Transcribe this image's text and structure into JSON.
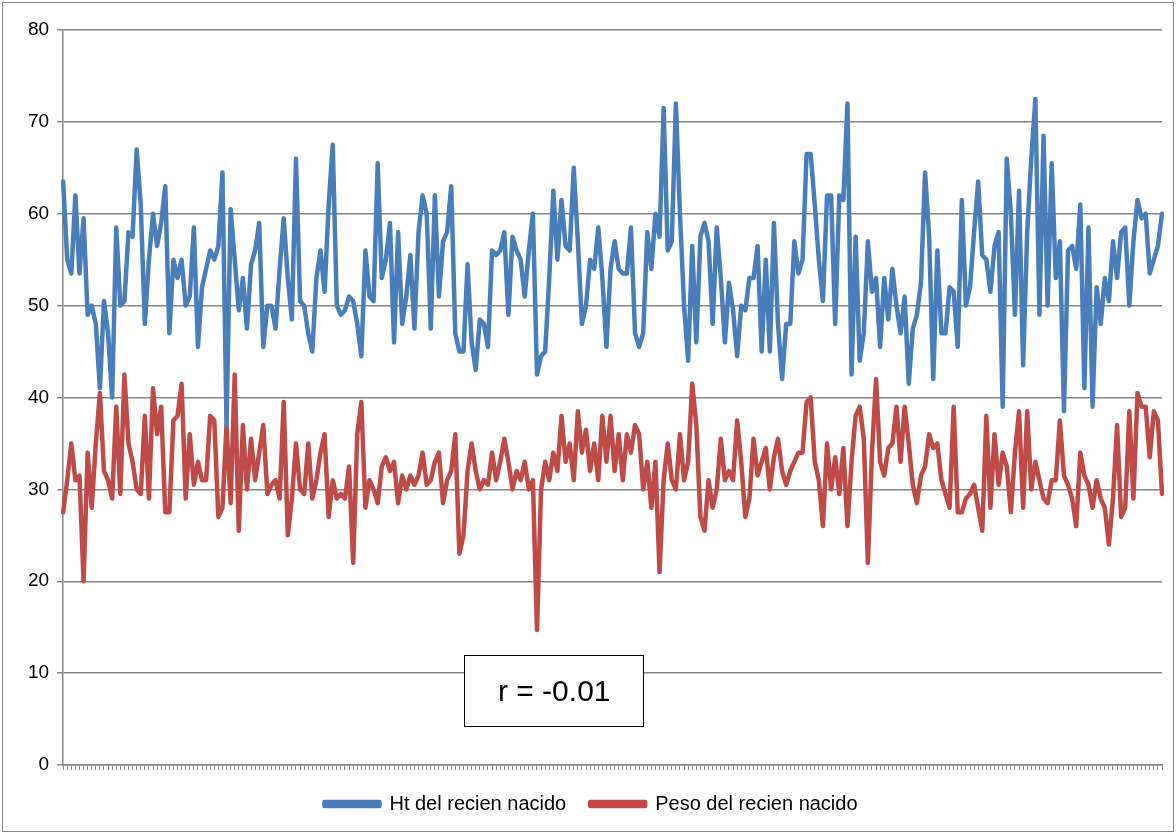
{
  "chart_data": {
    "type": "line",
    "categories": [
      null,
      null,
      null,
      null,
      null,
      null,
      null,
      null,
      null,
      null,
      null,
      null,
      null,
      null,
      null,
      null,
      null,
      null,
      null,
      null,
      null,
      null,
      null,
      null,
      null,
      null,
      null,
      null,
      null,
      null,
      null,
      null,
      null,
      null,
      null,
      null,
      null,
      null,
      null,
      null,
      null,
      null,
      null,
      null,
      null,
      null,
      null,
      null,
      null,
      null,
      null,
      null,
      null,
      null,
      null,
      null,
      null,
      null,
      null,
      null,
      null,
      null,
      null,
      null,
      null,
      null,
      null,
      null,
      null,
      null,
      null,
      null,
      null,
      null,
      null,
      null,
      null,
      null,
      null,
      null,
      null,
      null,
      null,
      null,
      null,
      null,
      null,
      null,
      null,
      null,
      null,
      null,
      null,
      null,
      null,
      null,
      null,
      null,
      null,
      null,
      null,
      null,
      null,
      null,
      null,
      null,
      null,
      null,
      null,
      null,
      null,
      null,
      null,
      null,
      null,
      null,
      null,
      null,
      null,
      null,
      null,
      null,
      null,
      null,
      null,
      null,
      null,
      null,
      null,
      null,
      null,
      null,
      null,
      null,
      null,
      null,
      null,
      null,
      null,
      null,
      null,
      null,
      null,
      null,
      null,
      null,
      null,
      null,
      null,
      null,
      null,
      null,
      null,
      null,
      null,
      null,
      null,
      null,
      null,
      null,
      null,
      null,
      null,
      null,
      null,
      null,
      null,
      null,
      null,
      null,
      null,
      null,
      null,
      null,
      null,
      null,
      null,
      null,
      null,
      null,
      null,
      null,
      null,
      null,
      null,
      null,
      null,
      null,
      null,
      null,
      null,
      null,
      null,
      null,
      null,
      null,
      null,
      null,
      null,
      null,
      null,
      null,
      null,
      null,
      null,
      null,
      null,
      null,
      null,
      null,
      null,
      null,
      null,
      null,
      null,
      null,
      null,
      null,
      null,
      null,
      null,
      null,
      null,
      null,
      null,
      null,
      null,
      null,
      null,
      null,
      null,
      null,
      null,
      null,
      null,
      null,
      null,
      null,
      null,
      null,
      null,
      null,
      null,
      null,
      null,
      null,
      null,
      null,
      null,
      null,
      null,
      null,
      null,
      null,
      null,
      null,
      null,
      null,
      null,
      null,
      null,
      null,
      null,
      null,
      null,
      null,
      null,
      null,
      null,
      null
    ],
    "series": [
      {
        "name": "Ht del recien nacido",
        "color": "#4a7ebb",
        "values": [
          63.5,
          55,
          53.5,
          62,
          53.5,
          59.5,
          49,
          50,
          48,
          41,
          50.5,
          47,
          40,
          58.5,
          50,
          50.5,
          58,
          57.5,
          67,
          61,
          48,
          55,
          60,
          56.5,
          59,
          63,
          47,
          55,
          53,
          55,
          50,
          51,
          58.5,
          45.5,
          52,
          54,
          56,
          55,
          56.5,
          64.5,
          37,
          60.5,
          55,
          49.5,
          53,
          47.5,
          54.5,
          56,
          59,
          45.5,
          50,
          50,
          47.5,
          54,
          59.5,
          53,
          48.5,
          66,
          50.5,
          50,
          47,
          45,
          53,
          56,
          51.5,
          61,
          67.5,
          50,
          49,
          49.5,
          51,
          50.5,
          48,
          44.5,
          56,
          51,
          50.5,
          65.5,
          53,
          55,
          59,
          46,
          58,
          48,
          51,
          55.5,
          47.5,
          58,
          62,
          60,
          47.5,
          62,
          51,
          57,
          58,
          63,
          47,
          45,
          45,
          54.5,
          46,
          43,
          48.5,
          48,
          45.5,
          56,
          55.5,
          56,
          58,
          49,
          57.5,
          56,
          55,
          51,
          56,
          60,
          42.5,
          44.5,
          45,
          53,
          62.5,
          55,
          61.5,
          56.5,
          56,
          65,
          57,
          48,
          50,
          55,
          54,
          58.5,
          53,
          45.5,
          54,
          57,
          54,
          53.5,
          53.5,
          58.5,
          47,
          45.5,
          47,
          58,
          54,
          60,
          57.5,
          71.5,
          56,
          57,
          72,
          60,
          50,
          44,
          56.5,
          46,
          57.5,
          59,
          57,
          48,
          58.5,
          53,
          46,
          52.5,
          49.5,
          44.5,
          50,
          49.5,
          53,
          53,
          56.5,
          45,
          55,
          45,
          59,
          48,
          42,
          48,
          48,
          57,
          53.5,
          55,
          66.5,
          66.5,
          61,
          55,
          50.5,
          62,
          62,
          48,
          62,
          61.5,
          72,
          42.5,
          57.5,
          44,
          47,
          57,
          51.5,
          53,
          45.5,
          53,
          48.5,
          54,
          50,
          47,
          51,
          41.5,
          47.5,
          49,
          52.5,
          64.5,
          57.5,
          42,
          56,
          47,
          47,
          52,
          51.5,
          45.5,
          61.5,
          50,
          52,
          58,
          63.5,
          55.5,
          55,
          51.5,
          56.5,
          58,
          39,
          66,
          60,
          49,
          62.5,
          43.5,
          58,
          66,
          72.5,
          49,
          68.5,
          50,
          65.5,
          53,
          57,
          38.5,
          56,
          56.5,
          54,
          61,
          41,
          58.5,
          39,
          52,
          48,
          53,
          50.5,
          57,
          53,
          58,
          58.5,
          50,
          57,
          61.5,
          59.5,
          60,
          53.5,
          55,
          56.5,
          60
        ]
      },
      {
        "name": "Peso del recien nacido",
        "color": "#be4b48",
        "values": [
          27.5,
          31,
          35,
          31,
          31.5,
          20,
          34,
          28,
          35,
          40.5,
          32,
          31,
          29,
          39,
          29.5,
          42.5,
          35,
          33,
          30,
          29.5,
          38,
          29,
          41,
          36,
          39,
          27.5,
          27.5,
          37.5,
          38,
          41.5,
          29,
          36,
          30.5,
          33,
          31,
          31,
          38,
          37.5,
          27,
          28,
          37,
          28.5,
          42.5,
          25.5,
          37,
          30,
          35.5,
          31,
          34,
          37,
          29.5,
          30.5,
          31,
          29,
          39.5,
          25,
          29,
          35,
          30,
          29.5,
          35,
          29,
          31,
          34,
          36,
          27,
          31,
          29,
          29.5,
          29,
          32.5,
          22,
          36,
          39.5,
          28,
          31,
          30,
          28.5,
          32.5,
          33.5,
          32,
          33,
          28.5,
          31.5,
          30,
          31.5,
          30.5,
          31.5,
          34,
          30.5,
          31,
          33,
          34,
          28.5,
          31,
          32,
          36,
          23,
          25,
          32,
          35,
          32,
          30,
          31,
          30.5,
          34,
          31,
          33,
          35.5,
          33,
          30,
          32,
          31,
          33,
          30,
          31,
          14.7,
          30,
          33,
          31,
          34,
          32,
          38,
          33,
          35,
          31,
          38.5,
          34,
          36.5,
          32,
          35,
          31,
          38,
          33,
          38,
          32,
          36,
          31,
          36,
          34,
          37,
          36,
          30,
          33,
          28,
          33,
          21,
          31,
          35,
          31,
          30,
          36,
          31,
          33,
          41.5,
          37,
          27,
          25.5,
          31,
          28,
          30,
          35.5,
          31,
          32,
          31,
          37.5,
          33,
          27,
          29,
          35.5,
          31.5,
          33,
          34.5,
          30,
          33.5,
          35.5,
          32,
          30.5,
          32,
          33,
          34,
          34,
          39.5,
          40,
          33,
          31,
          26,
          35,
          30,
          33.5,
          29.5,
          34.5,
          26,
          33,
          38,
          39,
          35.5,
          22,
          34,
          42,
          33,
          31.5,
          34.5,
          35,
          39,
          33,
          39,
          35,
          30.5,
          28.5,
          31.5,
          32.5,
          36,
          34.5,
          35,
          31,
          29.5,
          28,
          39,
          27.5,
          27.5,
          29,
          29.5,
          30.5,
          28,
          25.5,
          38,
          28,
          36,
          30.5,
          34,
          32.5,
          27.5,
          34,
          38.5,
          28,
          38.5,
          30,
          33,
          31,
          29,
          28.5,
          31,
          31,
          37.5,
          31.5,
          30.5,
          29,
          26,
          34,
          31.5,
          30.5,
          28,
          31,
          29,
          28,
          24,
          29,
          37,
          27,
          28,
          38.5,
          29,
          40.5,
          39,
          39,
          33.5,
          38.5,
          37.5,
          29.5
        ]
      }
    ],
    "ylim": [
      0,
      80
    ],
    "yticks": [
      0,
      10,
      20,
      30,
      40,
      50,
      60,
      70,
      80
    ],
    "grid": "y",
    "legend": "bottom",
    "marker": "none",
    "line_style": "solid",
    "tick_labels": "y",
    "annotations": [
      "r = -0.01"
    ]
  }
}
